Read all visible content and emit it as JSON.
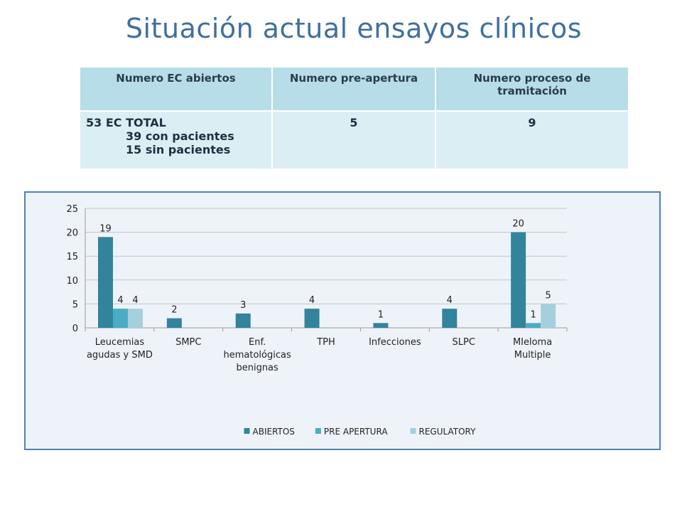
{
  "title": "Situación actual ensayos clínicos",
  "table": {
    "headers": [
      "Numero EC abiertos",
      "Numero pre-apertura",
      "Numero proceso de tramitación"
    ],
    "row": {
      "cell1": [
        "53 EC TOTAL",
        "39 con pacientes",
        "15 sin pacientes"
      ],
      "cell2": "5",
      "cell3": "9"
    }
  },
  "chart_data": {
    "type": "bar",
    "categories": [
      [
        "Leucemias",
        "agudas y SMD"
      ],
      [
        "SMPC"
      ],
      [
        "Enf.",
        "hematológicas",
        "benignas"
      ],
      [
        "TPH"
      ],
      [
        "Infecciones"
      ],
      [
        "SLPC"
      ],
      [
        "MIeloma",
        "Multiple"
      ]
    ],
    "series": [
      {
        "name": "ABIERTOS",
        "color": "#31849b",
        "values": [
          19,
          2,
          3,
          4,
          1,
          4,
          20
        ]
      },
      {
        "name": "PRE APERTURA",
        "color": "#4bacc6",
        "values": [
          4,
          null,
          null,
          null,
          null,
          null,
          1
        ]
      },
      {
        "name": "REGULATORY",
        "color": "#a6cfdd",
        "values": [
          4,
          null,
          null,
          null,
          null,
          null,
          5
        ]
      }
    ],
    "yticks": [
      "0",
      "5",
      "10",
      "15",
      "20",
      "25"
    ],
    "ylim": [
      0,
      25
    ],
    "grid": true,
    "legend": "bottom"
  }
}
